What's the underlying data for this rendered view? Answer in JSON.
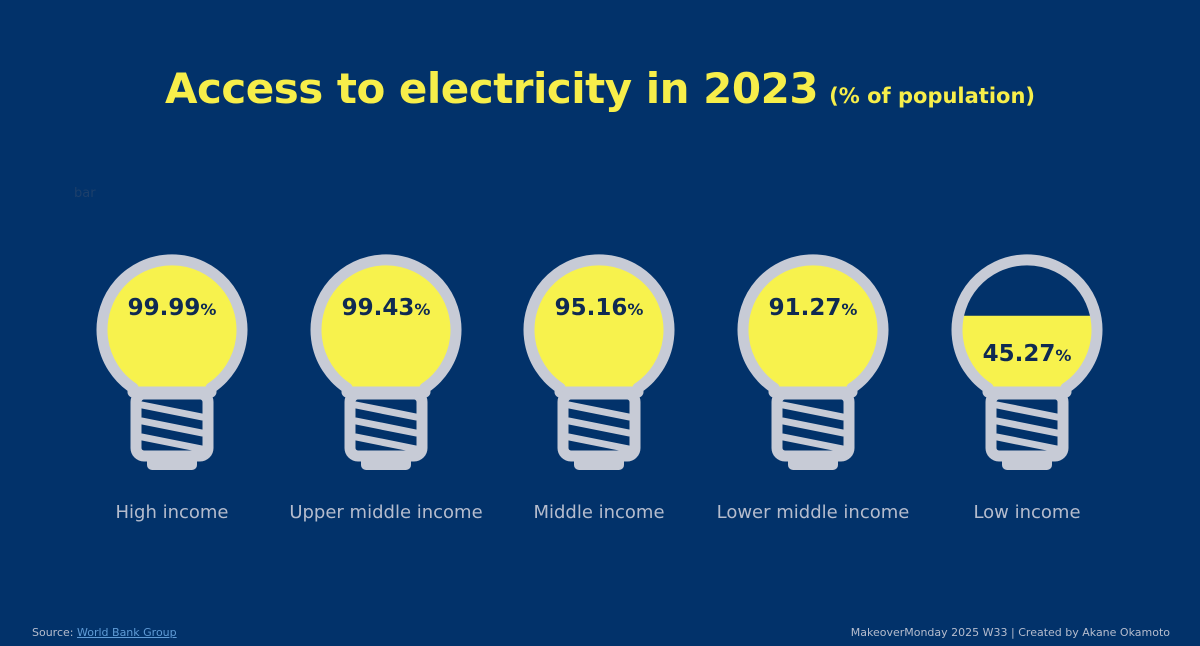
{
  "title": {
    "main": "Access to electricity in 2023",
    "sub": "(% of population)"
  },
  "stray_text": "bar",
  "chart_data": {
    "type": "bar",
    "title": "Access to electricity in 2023 (% of population)",
    "categories": [
      "High income",
      "Upper middle income",
      "Middle income",
      "Lower middle income",
      "Low income"
    ],
    "values": [
      99.99,
      99.43,
      95.16,
      91.27,
      45.27
    ],
    "value_labels": [
      "99.99",
      "99.43",
      "95.16",
      "91.27",
      "45.27"
    ],
    "unit": "%",
    "ylim": [
      0,
      100
    ],
    "grid": false,
    "legend": "none"
  },
  "footer": {
    "source_label": "Source:",
    "source_link": "World Bank Group",
    "credit": "MakeoverMonday 2025 W33 | Created by Akane Okamoto"
  },
  "colors": {
    "background": "#02326a",
    "fill": "#f7f24d",
    "bulb_outline": "#c7cbd6",
    "label_text": "#0f2a52",
    "title": "#f7ee4a"
  }
}
